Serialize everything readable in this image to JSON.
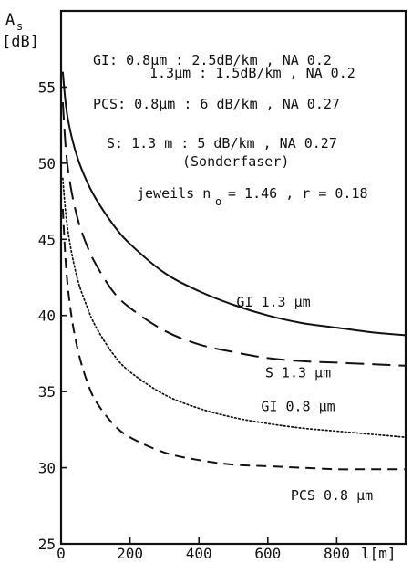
{
  "chart_data": {
    "type": "line",
    "ylabel": "A",
    "ylabel_sub": "s",
    "yunit": "[dB]",
    "xlabel_inline": "l[m]",
    "xlim": [
      0,
      1000
    ],
    "ylim": [
      25,
      60
    ],
    "xticks": [
      "0",
      "200",
      "400",
      "600",
      "800"
    ],
    "yticks": [
      "25",
      "30",
      "35",
      "40",
      "45",
      "50",
      "55"
    ],
    "grid": false,
    "annotations": {
      "gi_line1": "GI: 0.8μm : 2.5dB/km , NA 0.2",
      "gi_line2": "1.3μm : 1.5dB/km , NA 0.2",
      "pcs_line": "PCS: 0.8μm : 6  dB/km , NA 0.27",
      "s_line": "S: 1.3 m : 5  dB/km , NA 0.27",
      "s_note": "(Sonderfaser)",
      "jeweils_pre": "jeweils n",
      "jeweils_sub": "o",
      "jeweils_post": "= 1.46 , r = 0.18"
    },
    "series": [
      {
        "name": "GI 1.3 μm",
        "style": "solid",
        "x": [
          5,
          15,
          30,
          50,
          75,
          100,
          150,
          200,
          300,
          400,
          500,
          600,
          700,
          800,
          900,
          1000
        ],
        "y": [
          56.0,
          53.6,
          51.8,
          50.2,
          48.8,
          47.7,
          46.0,
          44.7,
          42.8,
          41.6,
          40.7,
          40.0,
          39.5,
          39.2,
          38.9,
          38.7
        ]
      },
      {
        "name": "S 1.3 μm",
        "style": "longdash",
        "x": [
          5,
          15,
          30,
          50,
          75,
          100,
          150,
          200,
          300,
          400,
          500,
          600,
          700,
          800,
          900,
          1000
        ],
        "y": [
          54.0,
          50.6,
          48.2,
          46.2,
          44.6,
          43.4,
          41.6,
          40.5,
          39.0,
          38.1,
          37.6,
          37.2,
          37.0,
          36.9,
          36.8,
          36.7
        ]
      },
      {
        "name": "GI 0.8 μm",
        "style": "dotted",
        "x": [
          5,
          15,
          30,
          50,
          75,
          100,
          150,
          200,
          300,
          400,
          500,
          600,
          700,
          800,
          900,
          1000
        ],
        "y": [
          49.0,
          46.4,
          44.2,
          42.2,
          40.6,
          39.3,
          37.5,
          36.3,
          34.8,
          33.9,
          33.3,
          32.9,
          32.6,
          32.4,
          32.2,
          32.0
        ]
      },
      {
        "name": "PCS 0.8 μm",
        "style": "shortdash",
        "x": [
          5,
          15,
          30,
          50,
          75,
          100,
          150,
          200,
          300,
          400,
          500,
          600,
          700,
          800,
          900,
          1000
        ],
        "y": [
          47.0,
          43.0,
          40.0,
          37.6,
          35.7,
          34.4,
          32.9,
          32.0,
          31.0,
          30.5,
          30.2,
          30.1,
          30.0,
          29.9,
          29.9,
          29.9
        ]
      }
    ],
    "curve_labels": [
      {
        "text": "GI 1.3 μm",
        "series": "GI 1.3 μm"
      },
      {
        "text": "S 1.3 μm",
        "series": "S 1.3 μm"
      },
      {
        "text": "GI 0.8 μm",
        "series": "GI 0.8 μm"
      },
      {
        "text": "PCS 0.8 μm",
        "series": "PCS 0.8 μm"
      }
    ]
  }
}
